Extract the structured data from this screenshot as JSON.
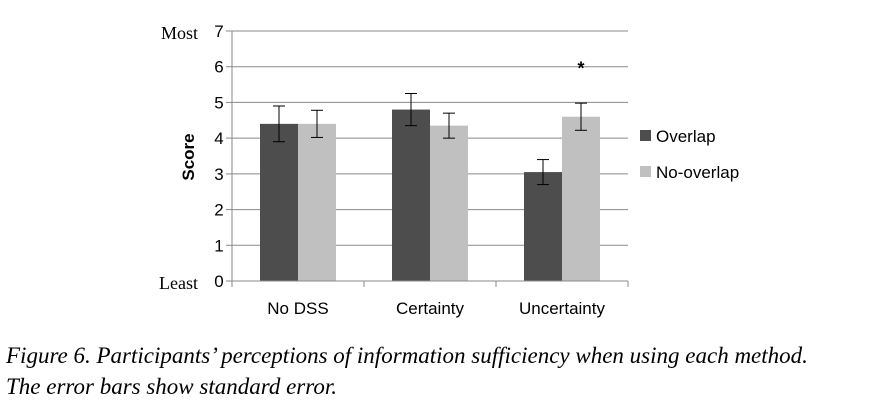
{
  "chart_data": {
    "type": "bar",
    "categories": [
      "No DSS",
      "Certainty",
      "Uncertainty"
    ],
    "series": [
      {
        "name": "Overlap",
        "color": "#4d4d4d",
        "values": [
          4.4,
          4.8,
          3.05
        ],
        "errors": [
          0.5,
          0.45,
          0.35
        ]
      },
      {
        "name": "No-overlap",
        "color": "#c0c0c0",
        "values": [
          4.4,
          4.35,
          4.6
        ],
        "errors": [
          0.38,
          0.35,
          0.38
        ]
      }
    ],
    "ylabel": "Score",
    "ylim": [
      0,
      7
    ],
    "yticks": [
      0,
      1,
      2,
      3,
      4,
      5,
      6,
      7
    ],
    "y_end_labels": {
      "top": "Most",
      "bottom": "Least"
    },
    "annotations": [
      {
        "text": "*",
        "category": "Uncertainty",
        "y": 6
      }
    ],
    "grid": true,
    "legend_position": "right"
  },
  "caption": {
    "line1": "Figure 6. Participants’ perceptions of information sufficiency when using each method.",
    "line2": "The error bars show standard error."
  }
}
